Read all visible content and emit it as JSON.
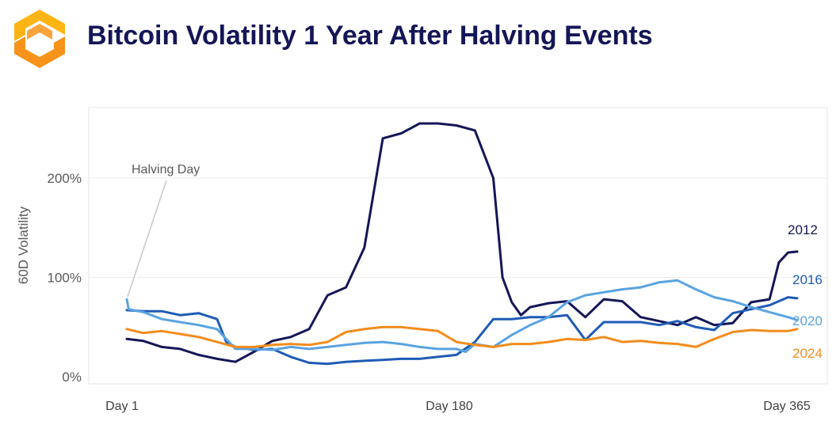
{
  "header": {
    "title": "Bitcoin Volatility 1 Year After Halving Events",
    "logo_icon": "hexagon-logo-icon",
    "logo_colors": [
      "#F7931A",
      "#FDB515"
    ]
  },
  "chart_data": {
    "type": "line",
    "title": "Bitcoin Volatility 1 Year After Halving Events",
    "ylabel": "60D Volatility",
    "xlabel": "",
    "xlim": [
      1,
      365
    ],
    "ylim": [
      0,
      265
    ],
    "yticks": [
      0,
      100,
      200
    ],
    "ytick_labels": [
      "0%",
      "100%",
      "200%"
    ],
    "xticks": [
      1,
      180,
      365
    ],
    "xtick_labels": [
      "Day 1",
      "Day 180",
      "Day 365"
    ],
    "grid": true,
    "annotation": {
      "text": "Halving Day",
      "x": 1,
      "y": 75
    },
    "series": [
      {
        "name": "2012",
        "color": "#141657",
        "x": [
          1,
          10,
          20,
          30,
          40,
          50,
          60,
          70,
          80,
          90,
          100,
          110,
          120,
          130,
          140,
          150,
          155,
          160,
          170,
          180,
          190,
          200,
          205,
          210,
          215,
          220,
          230,
          240,
          250,
          260,
          270,
          280,
          290,
          300,
          310,
          320,
          330,
          340,
          350,
          355,
          360,
          365
        ],
        "y": [
          38,
          36,
          30,
          28,
          22,
          18,
          15,
          25,
          36,
          40,
          48,
          82,
          90,
          130,
          240,
          245,
          250,
          255,
          255,
          253,
          248,
          200,
          100,
          75,
          62,
          70,
          74,
          76,
          60,
          78,
          76,
          60,
          56,
          52,
          60,
          52,
          54,
          75,
          78,
          115,
          125,
          126
        ]
      },
      {
        "name": "2016",
        "color": "#1F5BB5",
        "x": [
          1,
          10,
          20,
          30,
          40,
          50,
          55,
          60,
          70,
          80,
          90,
          100,
          110,
          120,
          130,
          140,
          150,
          160,
          170,
          180,
          190,
          200,
          210,
          220,
          230,
          240,
          250,
          260,
          270,
          280,
          290,
          300,
          310,
          320,
          330,
          340,
          350,
          360,
          365
        ],
        "y": [
          67,
          66,
          66,
          62,
          64,
          58,
          35,
          30,
          27,
          28,
          20,
          14,
          13,
          15,
          16,
          17,
          18,
          18,
          20,
          22,
          35,
          58,
          58,
          60,
          60,
          62,
          37,
          55,
          55,
          55,
          52,
          56,
          50,
          47,
          64,
          68,
          72,
          80,
          79
        ]
      },
      {
        "name": "2020",
        "color": "#5AA3E0",
        "x": [
          1,
          2,
          10,
          20,
          30,
          40,
          50,
          60,
          70,
          80,
          90,
          100,
          110,
          120,
          130,
          140,
          150,
          160,
          170,
          180,
          185,
          190,
          200,
          210,
          220,
          230,
          240,
          250,
          260,
          270,
          280,
          290,
          300,
          310,
          320,
          330,
          340,
          350,
          360,
          365
        ],
        "y": [
          78,
          68,
          65,
          58,
          55,
          52,
          48,
          28,
          28,
          27,
          30,
          28,
          30,
          32,
          34,
          35,
          33,
          30,
          28,
          28,
          25,
          33,
          30,
          42,
          52,
          60,
          75,
          82,
          85,
          88,
          90,
          95,
          97,
          88,
          80,
          76,
          70,
          65,
          60,
          57
        ]
      },
      {
        "name": "2024",
        "color": "#F28C1C",
        "x": [
          1,
          10,
          20,
          30,
          40,
          50,
          60,
          70,
          80,
          90,
          100,
          110,
          120,
          130,
          140,
          150,
          160,
          170,
          180,
          190,
          200,
          210,
          220,
          230,
          240,
          250,
          260,
          270,
          280,
          290,
          300,
          310,
          320,
          330,
          340,
          350,
          360,
          365
        ],
        "y": [
          48,
          44,
          46,
          43,
          40,
          35,
          30,
          30,
          32,
          33,
          32,
          35,
          45,
          48,
          50,
          50,
          48,
          46,
          35,
          32,
          30,
          33,
          33,
          35,
          38,
          37,
          40,
          35,
          36,
          34,
          33,
          30,
          38,
          45,
          47,
          46,
          46,
          48
        ]
      }
    ]
  }
}
